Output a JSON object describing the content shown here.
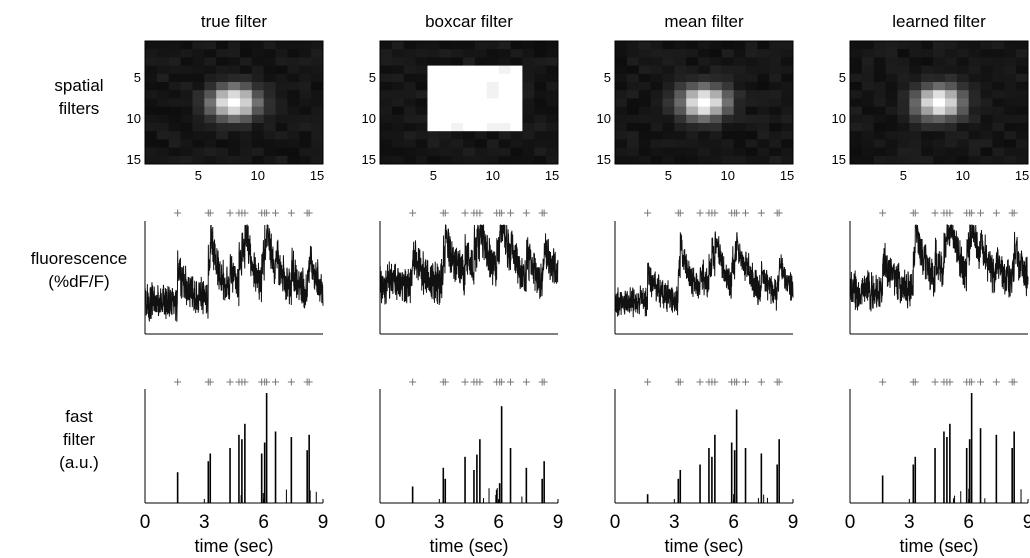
{
  "row_labels": {
    "spatial": [
      "spatial",
      "filters"
    ],
    "fluorescence": [
      "fluorescence",
      "(%dF/F)"
    ],
    "fast": [
      "fast",
      "filter",
      "(a.u.)"
    ]
  },
  "chart_data": {
    "type": "multi-panel",
    "columns": [
      {
        "title": "true filter",
        "spatial_filter": {
          "type": "heatmap",
          "shape": "gaussian",
          "center": [
            8,
            8
          ],
          "xticks": [
            5,
            10,
            15
          ],
          "yticks": [
            5,
            10,
            15
          ]
        },
        "fluorescence": {
          "type": "line",
          "baseline": 0.3,
          "noise": 0.14,
          "amplitudes": [
            0.9,
            1.0,
            0.9,
            0.7,
            0.8,
            0.6,
            0.9,
            0.8,
            0.7,
            0.6,
            0.5,
            0.6,
            0.5
          ]
        },
        "fast_filter": {
          "type": "bar",
          "xlabel": "time (sec)",
          "xticks": [
            0,
            3,
            6,
            9
          ],
          "xlim": [
            0,
            9
          ],
          "heights": [
            0.28,
            0.38,
            0.45,
            0.5,
            0.62,
            0.58,
            0.72,
            0.45,
            0.55,
            1.0,
            0.65,
            0.6,
            0.48,
            0.62,
            0.58
          ]
        },
        "spike_times": [
          1.65,
          3.2,
          3.3,
          4.3,
          4.75,
          4.9,
          5.05,
          5.9,
          6.05,
          6.15,
          6.6,
          7.4,
          8.2,
          8.3
        ]
      },
      {
        "title": "boxcar filter",
        "spatial_filter": {
          "type": "heatmap",
          "shape": "boxcar",
          "center": [
            8,
            8
          ],
          "xticks": [
            5,
            10,
            15
          ],
          "yticks": [
            5,
            10,
            15
          ]
        },
        "fluorescence": {
          "type": "line",
          "baseline": 0.45,
          "noise": 0.15,
          "amplitudes": [
            0.7,
            0.8,
            0.7,
            0.6,
            0.7,
            0.5,
            0.7,
            0.7,
            0.6,
            0.5,
            0.4,
            0.5,
            0.4
          ]
        },
        "fast_filter": {
          "type": "bar",
          "xlabel": "time (sec)",
          "xticks": [
            0,
            3,
            6,
            9
          ],
          "xlim": [
            0,
            9
          ],
          "heights": [
            0.15,
            0.32,
            0.22,
            0.42,
            0.3,
            0.44,
            0.58,
            0.12,
            0.18,
            0.88,
            0.5,
            0.32,
            0.22,
            0.38,
            0.3
          ]
        },
        "spike_times": [
          1.65,
          3.2,
          3.3,
          4.3,
          4.75,
          4.9,
          5.05,
          5.9,
          6.05,
          6.15,
          6.6,
          7.4,
          8.2,
          8.3
        ]
      },
      {
        "title": "mean filter",
        "spatial_filter": {
          "type": "heatmap",
          "shape": "gaussian",
          "center": [
            8,
            8
          ],
          "xticks": [
            5,
            10,
            15
          ],
          "yticks": [
            5,
            10,
            15
          ]
        },
        "fluorescence": {
          "type": "line",
          "baseline": 0.3,
          "noise": 0.11,
          "amplitudes": [
            0.8,
            0.9,
            0.8,
            0.6,
            0.7,
            0.5,
            0.8,
            0.7,
            0.6,
            0.5,
            0.4,
            0.5,
            0.4
          ]
        },
        "fast_filter": {
          "type": "bar",
          "xlabel": "time (sec)",
          "xticks": [
            0,
            3,
            6,
            9
          ],
          "xlim": [
            0,
            9
          ],
          "heights": [
            0.08,
            0.22,
            0.3,
            0.35,
            0.5,
            0.42,
            0.62,
            0.55,
            0.48,
            0.85,
            0.5,
            0.45,
            0.35,
            0.58,
            0.15
          ]
        },
        "spike_times": [
          1.65,
          3.2,
          3.3,
          4.3,
          4.75,
          4.9,
          5.05,
          5.9,
          6.05,
          6.15,
          6.6,
          7.4,
          8.2,
          8.3
        ]
      },
      {
        "title": "learned filter",
        "spatial_filter": {
          "type": "heatmap",
          "shape": "gaussian",
          "center": [
            8,
            8
          ],
          "xticks": [
            5,
            10,
            15
          ],
          "yticks": [
            5,
            10,
            15
          ]
        },
        "fluorescence": {
          "type": "line",
          "baseline": 0.4,
          "noise": 0.14,
          "amplitudes": [
            0.9,
            1.0,
            0.9,
            0.7,
            0.8,
            0.6,
            0.9,
            0.8,
            0.7,
            0.6,
            0.5,
            0.6,
            0.5
          ]
        },
        "fast_filter": {
          "type": "bar",
          "xlabel": "time (sec)",
          "xticks": [
            0,
            3,
            6,
            9
          ],
          "xlim": [
            0,
            9
          ],
          "heights": [
            0.25,
            0.35,
            0.42,
            0.5,
            0.65,
            0.6,
            0.72,
            0.5,
            0.58,
            1.0,
            0.68,
            0.62,
            0.5,
            0.65,
            0.55
          ]
        },
        "spike_times": [
          1.65,
          3.2,
          3.3,
          4.3,
          4.75,
          4.9,
          5.05,
          5.9,
          6.05,
          6.15,
          6.6,
          7.4,
          8.2,
          8.3
        ]
      }
    ]
  }
}
